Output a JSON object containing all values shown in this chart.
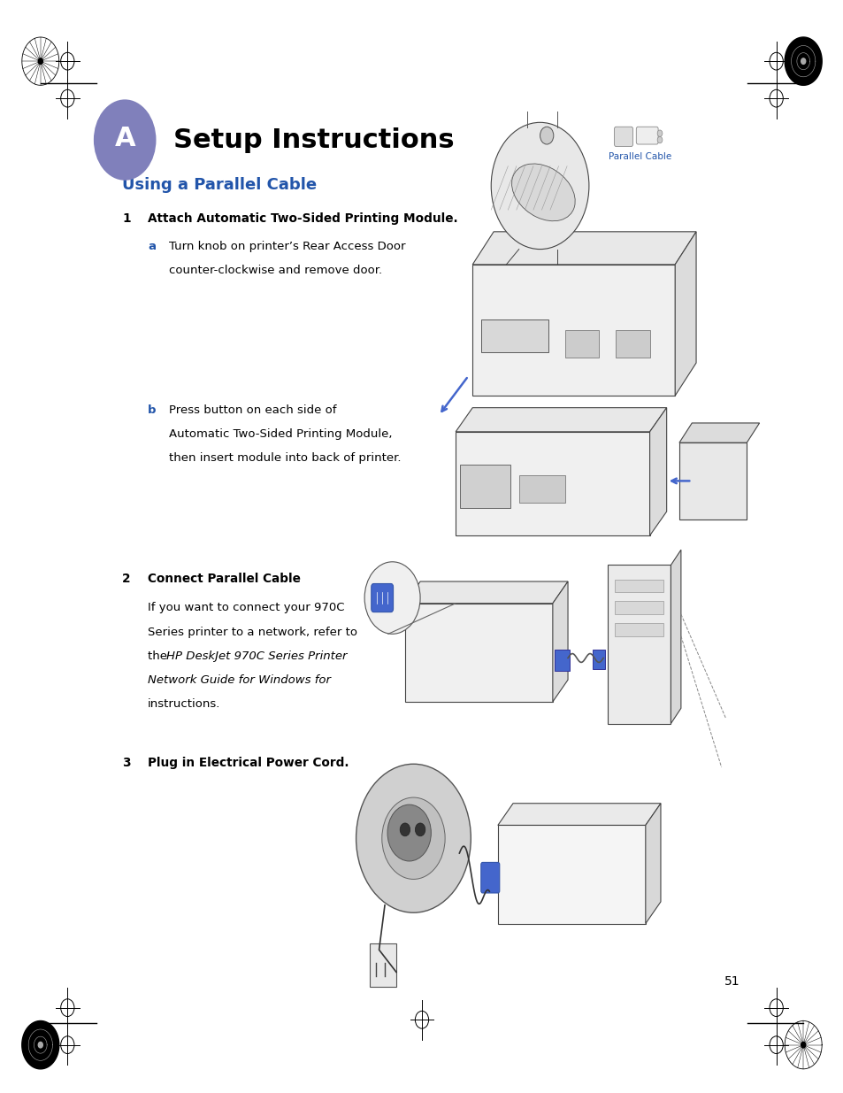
{
  "page_bg": "#ffffff",
  "title": "Setup Instructions",
  "title_letter": "A",
  "title_letter_bg": "#8080bb",
  "subtitle": "Using a Parallel Cable",
  "subtitle_color": "#2255aa",
  "step1_title": "Attach Automatic Two-Sided Printing Module.",
  "step1a_label": "a",
  "step1a_text1": "Turn knob on printer’s Rear Access Door",
  "step1a_text2": "counter-clockwise and remove door.",
  "step1b_label": "b",
  "step1b_text1": "Press button on each side of",
  "step1b_text2": "Automatic Two-Sided Printing Module,",
  "step1b_text3": "then insert module into back of printer.",
  "step2_title": "Connect Parallel Cable",
  "step2_text1": "If you want to connect your 970C",
  "step2_text2": "Series printer to a network, refer to",
  "step2_text3": "the ",
  "step2_italic": "HP DeskJet 970C Series Printer",
  "step2_text4": "Network Guide for Windows",
  "step2_text5": " for",
  "step2_text6": "instructions.",
  "step3_title": "Plug in Electrical Power Cord.",
  "page_num": "51",
  "parallel_cable_label": "Parallel Cable",
  "parallel_cable_color": "#2255aa",
  "body_font_size": 9.5,
  "step_title_font_size": 9.8,
  "main_title_font_size": 22,
  "subtitle_font_size": 13,
  "label_color": "#2255aa",
  "text_indent_num": 0.145,
  "text_indent_label": 0.175,
  "text_indent_body": 0.2
}
